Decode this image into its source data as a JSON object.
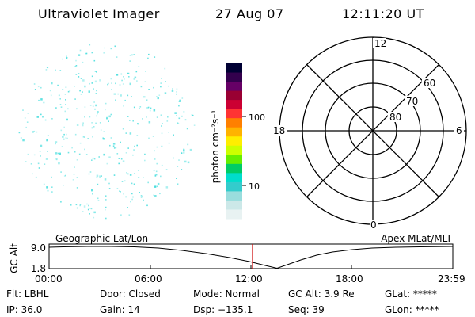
{
  "header": {
    "title": "Ultraviolet Imager",
    "date": "27 Aug 07",
    "time": "12:11:20 UT"
  },
  "colorbar": {
    "unit_label": "photon cm⁻²s⁻¹",
    "ticks": [
      "100",
      "10"
    ],
    "colors": [
      "#000033",
      "#33004d",
      "#660066",
      "#990033",
      "#cc0033",
      "#ff3333",
      "#ff8000",
      "#ffb300",
      "#ffee00",
      "#ccff00",
      "#66ee00",
      "#00cc66",
      "#00ddcc",
      "#33cccc",
      "#99dddd",
      "#cce8e8",
      "#e8f2f2"
    ]
  },
  "polar_grid": {
    "mlt_labels": [
      "12",
      "18",
      "6",
      "0"
    ],
    "lat_labels": [
      "60",
      "70",
      "80"
    ]
  },
  "altitude_plot": {
    "left_label": "Geographic Lat/Lon",
    "right_label": "Apex MLat/MLT",
    "ylabel": "GC Alt",
    "yticks": [
      "9.0",
      "1.8"
    ],
    "xticks": [
      "00:00",
      "06:00",
      "12:00",
      "18:00",
      "23:59"
    ],
    "marker_color": "#cc0000"
  },
  "info": {
    "row1": [
      "Flt: LBHL",
      "Door: Closed",
      "Mode: Normal",
      "GC Alt: 3.9 Re",
      "GLat: *****"
    ],
    "row2": [
      "IP: 36.0",
      "Gain: 14",
      "Dsp: −135.1",
      "Seq: 39",
      "GLon: *****"
    ]
  },
  "image_speckle_color": "#44dddd"
}
